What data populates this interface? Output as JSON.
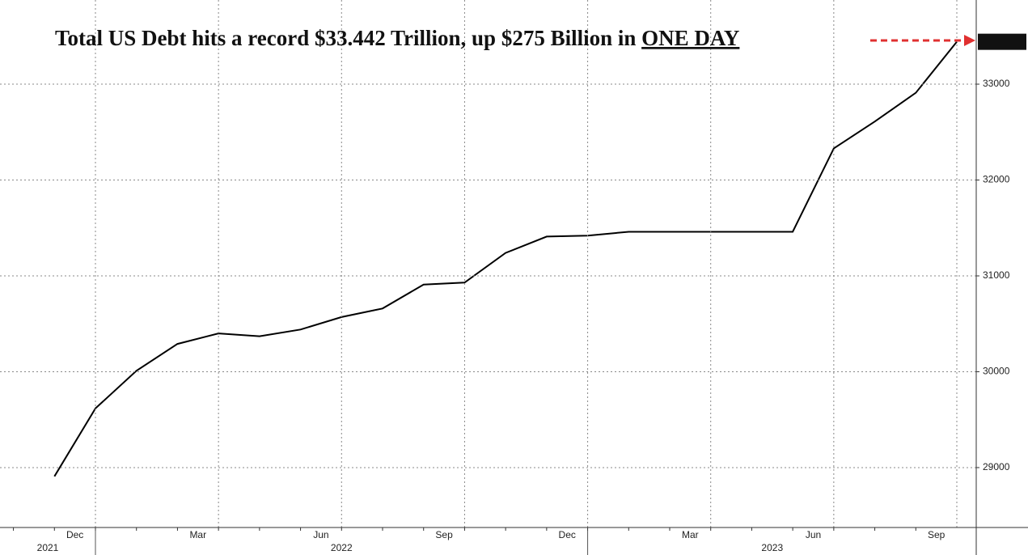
{
  "chart_data": {
    "type": "line",
    "title": "Total US Debt hits a record $33.442 Trillion, up $275 Billion in",
    "title_emphasis": "ONE DAY",
    "categories": [
      null,
      "Dec",
      null,
      null,
      "Mar",
      null,
      null,
      "Jun",
      null,
      null,
      "Sep",
      null,
      null,
      "Dec",
      null,
      null,
      "Mar",
      null,
      null,
      "Jun",
      null,
      null,
      "Sep"
    ],
    "years": [
      "2021",
      "2022",
      "2023"
    ],
    "series": [
      {
        "color": "#000000",
        "values": [
          28908,
          29617,
          30010,
          30290,
          30400,
          30370,
          30440,
          30570,
          30660,
          30910,
          30930,
          31240,
          31410,
          31420,
          31460,
          31460,
          31460,
          31460,
          31460,
          32330,
          32610,
          32910,
          33442.15
        ]
      }
    ],
    "ylim": [
      28375,
      33878
    ],
    "yticks": [
      29000,
      30000,
      31000,
      32000,
      33000
    ],
    "grid": true
  }
}
